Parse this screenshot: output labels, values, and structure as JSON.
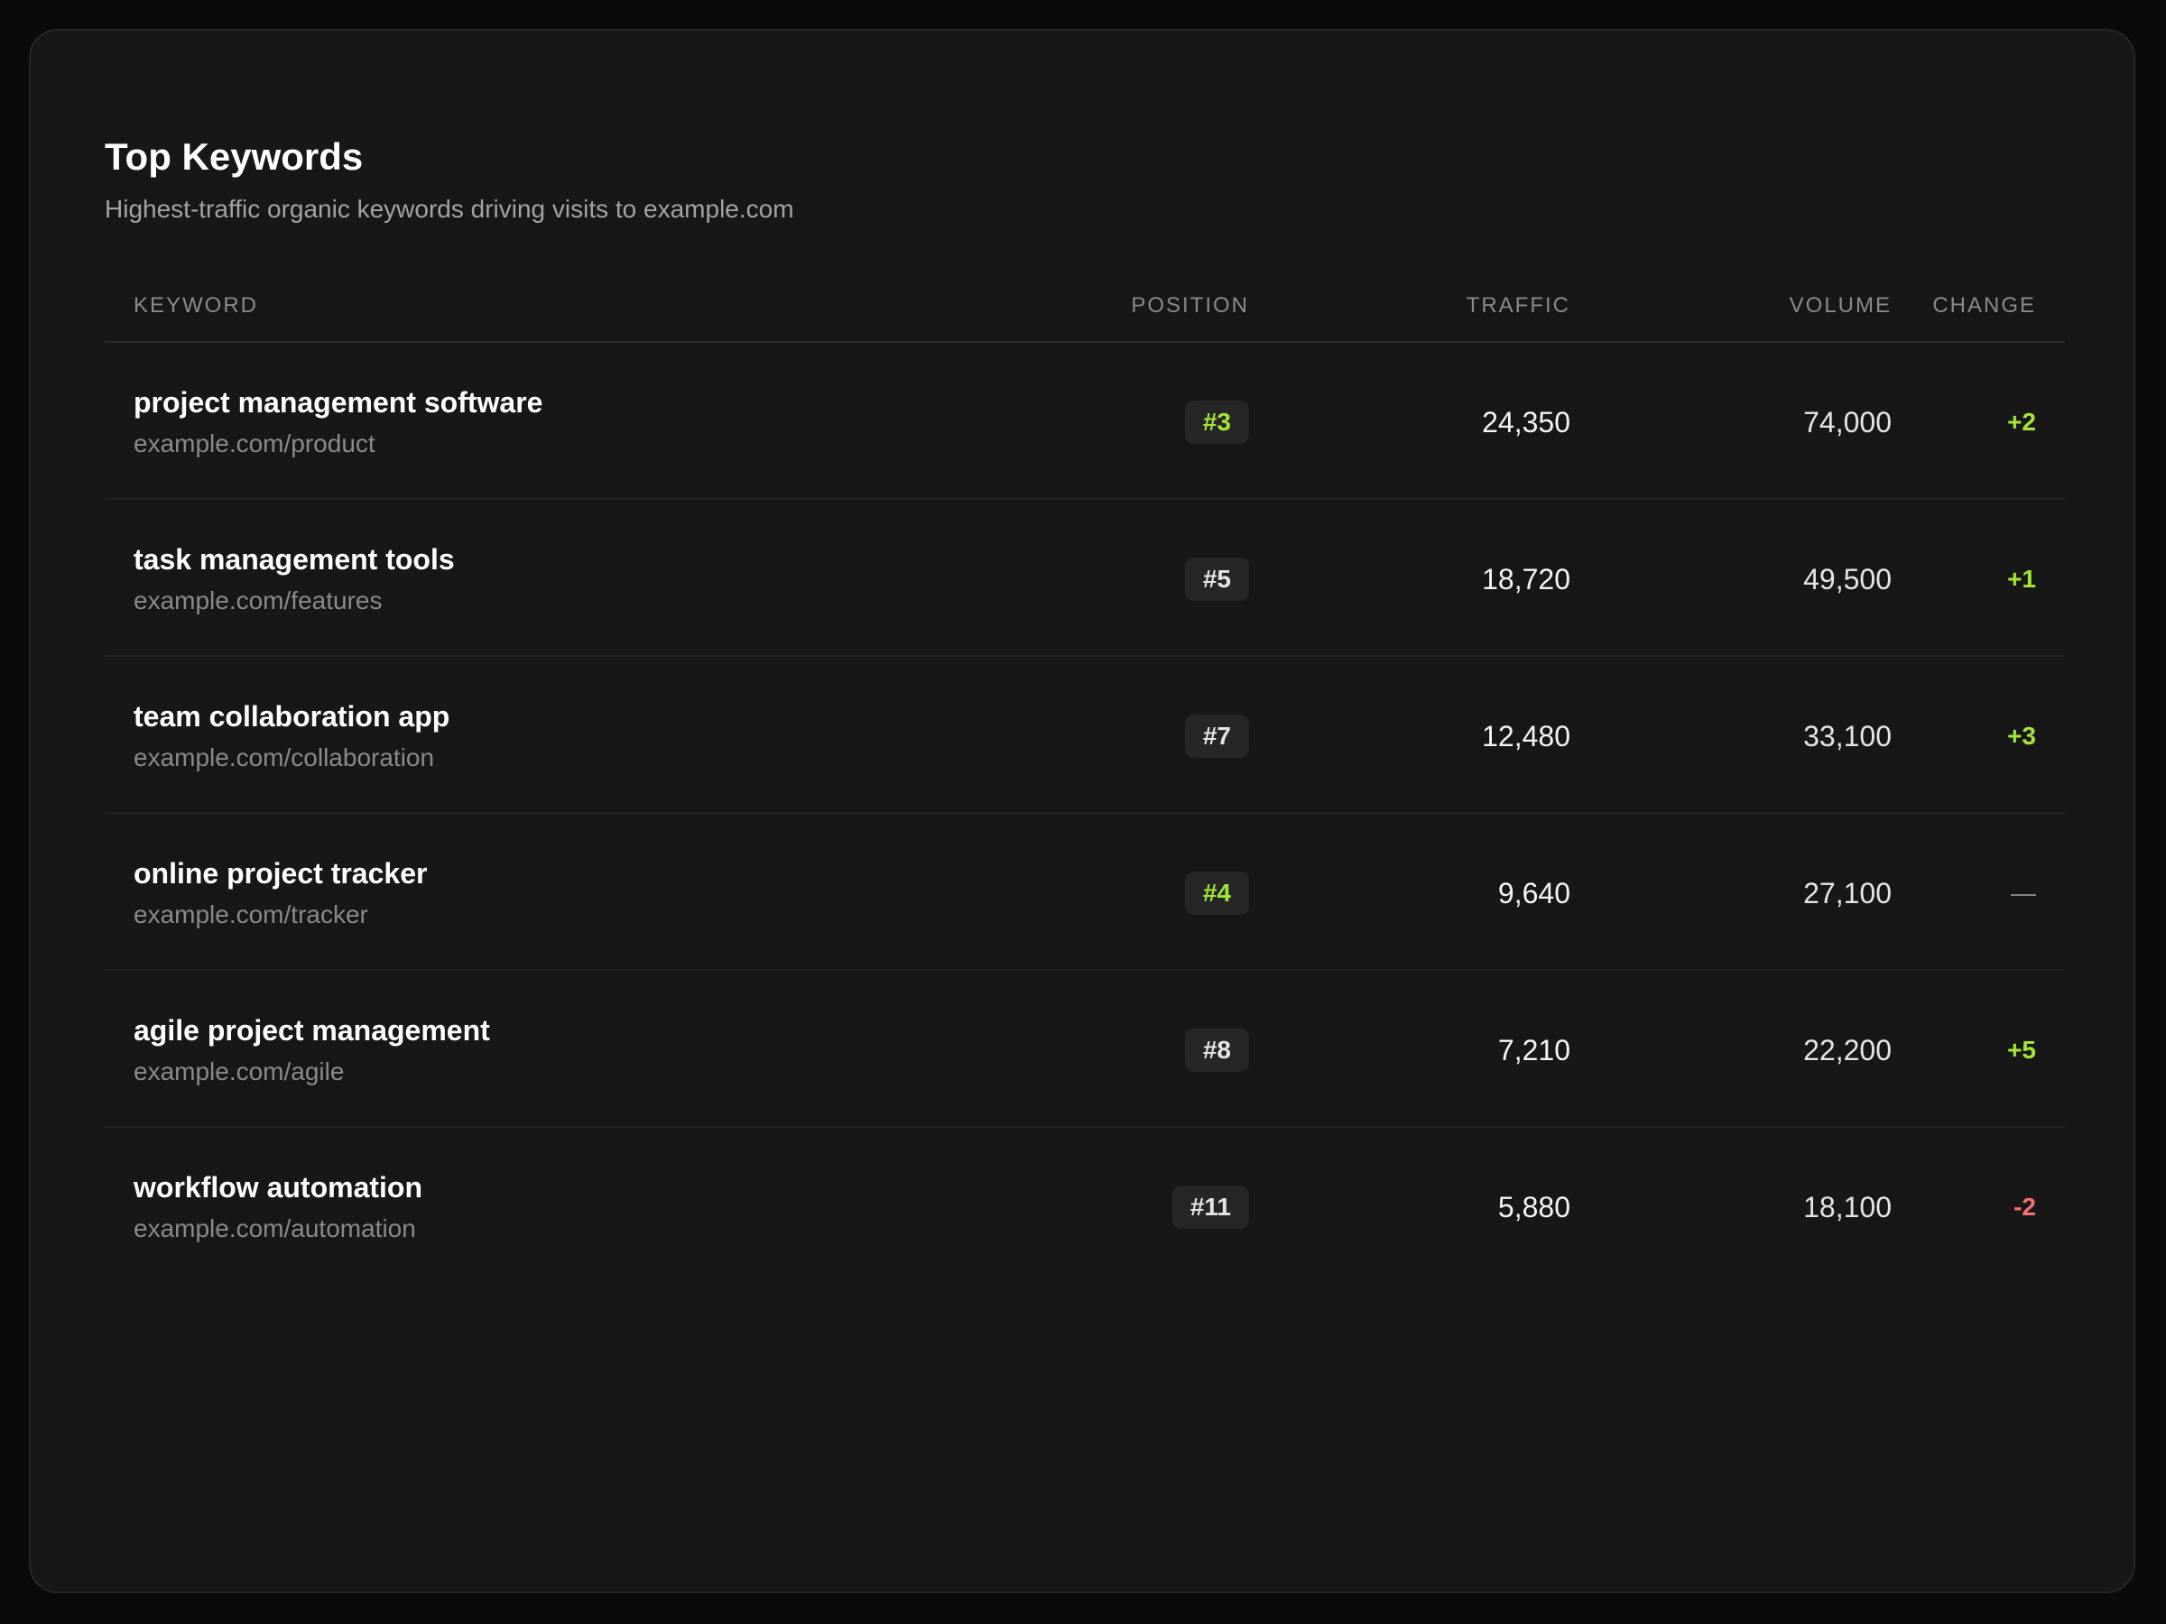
{
  "card": {
    "title": "Top Keywords",
    "subtitle": "Highest-traffic organic keywords driving visits to example.com"
  },
  "table": {
    "headers": {
      "keyword": "KEYWORD",
      "position": "POSITION",
      "traffic": "TRAFFIC",
      "volume": "VOLUME",
      "change": "CHANGE"
    },
    "rows": [
      {
        "keyword": "project management software",
        "url": "example.com/product",
        "position": "#3",
        "position_highlight": true,
        "traffic": "24,350",
        "volume": "74,000",
        "change": "+2",
        "trend": "up"
      },
      {
        "keyword": "task management tools",
        "url": "example.com/features",
        "position": "#5",
        "position_highlight": false,
        "traffic": "18,720",
        "volume": "49,500",
        "change": "+1",
        "trend": "up"
      },
      {
        "keyword": "team collaboration app",
        "url": "example.com/collaboration",
        "position": "#7",
        "position_highlight": false,
        "traffic": "12,480",
        "volume": "33,100",
        "change": "+3",
        "trend": "up"
      },
      {
        "keyword": "online project tracker",
        "url": "example.com/tracker",
        "position": "#4",
        "position_highlight": true,
        "traffic": "9,640",
        "volume": "27,100",
        "change": "—",
        "trend": "flat"
      },
      {
        "keyword": "agile project management",
        "url": "example.com/agile",
        "position": "#8",
        "position_highlight": false,
        "traffic": "7,210",
        "volume": "22,200",
        "change": "+5",
        "trend": "up"
      },
      {
        "keyword": "workflow automation",
        "url": "example.com/automation",
        "position": "#11",
        "position_highlight": false,
        "traffic": "5,880",
        "volume": "18,100",
        "change": "-2",
        "trend": "down"
      }
    ]
  },
  "colors": {
    "background": "#0a0a0a",
    "card": "#171717",
    "positive": "#a3e635",
    "negative": "#f87171",
    "muted": "#8a8a8a"
  }
}
